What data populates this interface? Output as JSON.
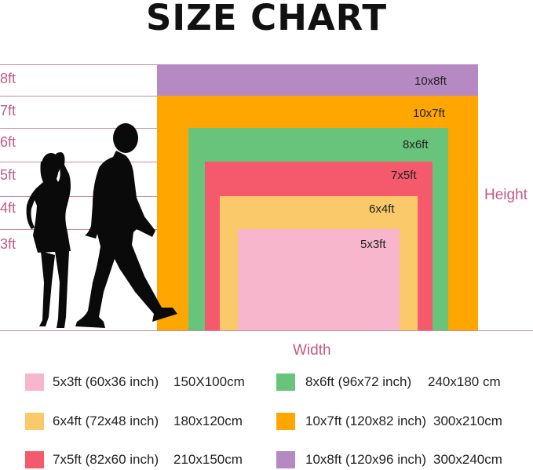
{
  "title": "SIZE CHART",
  "height_ticks": [
    "8ft",
    "7ft",
    "6ft",
    "5ft",
    "4ft",
    "3ft"
  ],
  "axis": {
    "height": "Height",
    "width": "Width"
  },
  "colors": {
    "line": "#c88aa5",
    "size_10x8": "#b689c3",
    "size_10x7": "#ffa600",
    "size_8x6": "#68c47b",
    "size_7x5": "#f55a6c",
    "size_6x4": "#f9c96a",
    "size_5x3": "#f8b6cc",
    "silhouette": "#0a0a0a"
  },
  "sizes": [
    {
      "id": "10x8",
      "label": "10x8ft"
    },
    {
      "id": "10x7",
      "label": "10x7ft"
    },
    {
      "id": "8x6",
      "label": "8x6ft"
    },
    {
      "id": "7x5",
      "label": "7x5ft"
    },
    {
      "id": "6x4",
      "label": "6x4ft"
    },
    {
      "id": "5x3",
      "label": "5x3ft"
    }
  ],
  "legend": [
    {
      "size": "5x3ft (60x36 inch)",
      "cm": "150X100cm"
    },
    {
      "size": "8x6ft (96x72 inch)",
      "cm": "240x180 cm"
    },
    {
      "size": "6x4ft (72x48 inch)",
      "cm": "180x120cm"
    },
    {
      "size": "10x7ft (120x82 inch)",
      "cm": "300x210cm"
    },
    {
      "size": "7x5ft (82x60 inch)",
      "cm": "210x150cm"
    },
    {
      "size": "10x8ft (120x96 inch)",
      "cm": "300x240cm"
    }
  ]
}
